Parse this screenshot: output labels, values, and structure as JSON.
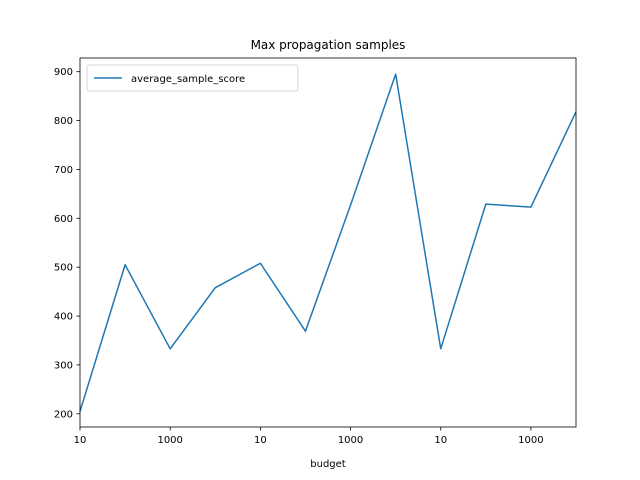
{
  "chart_data": {
    "type": "line",
    "title": "Max propagation samples",
    "xlabel": "budget",
    "ylabel": "",
    "x_tick_labels": [
      "10",
      "1000",
      "10",
      "1000",
      "10",
      "1000"
    ],
    "y_ticks": [
      200,
      300,
      400,
      500,
      600,
      700,
      800,
      900
    ],
    "ylim": [
      173,
      928
    ],
    "grid": false,
    "legend": {
      "position": "top-left"
    },
    "series": [
      {
        "name": "average_sample_score",
        "color": "#1f77b4",
        "values": [
          205,
          505,
          333,
          458,
          508,
          369,
          627,
          895,
          333,
          629,
          623,
          818
        ]
      }
    ]
  }
}
